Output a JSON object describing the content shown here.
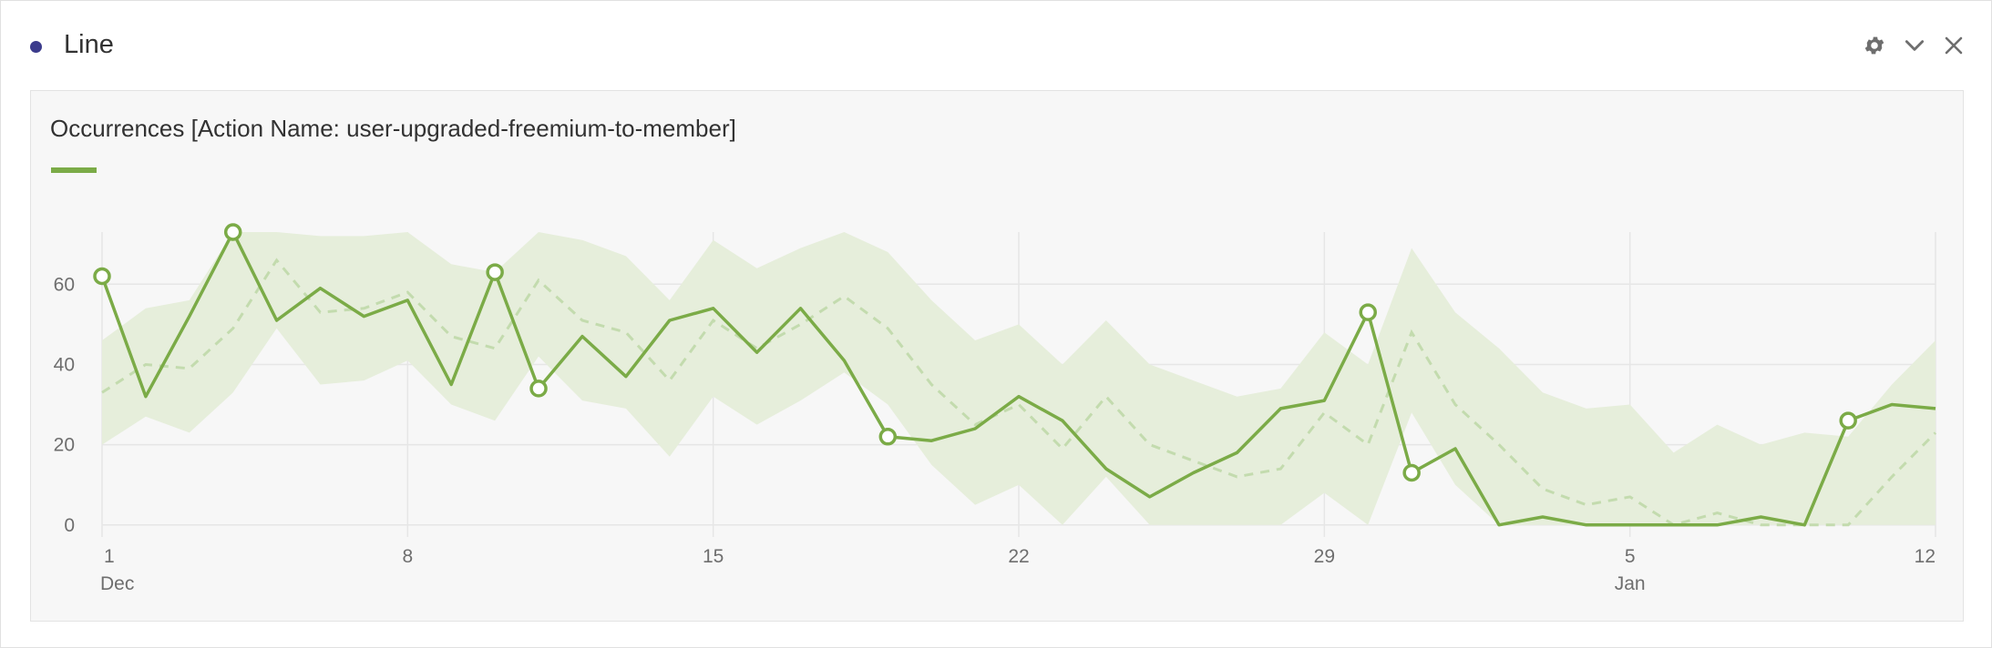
{
  "panel": {
    "title": "Line",
    "status_color": "#3b3b8c",
    "icons": [
      "gear-icon",
      "chevron-down-icon",
      "close-icon"
    ]
  },
  "chart_data": {
    "type": "line",
    "title": "Occurrences [Action Name: user-upgraded-freemium-to-member]",
    "x": [
      "Dec 1",
      "Dec 2",
      "Dec 3",
      "Dec 4",
      "Dec 5",
      "Dec 6",
      "Dec 7",
      "Dec 8",
      "Dec 9",
      "Dec 10",
      "Dec 11",
      "Dec 12",
      "Dec 13",
      "Dec 14",
      "Dec 15",
      "Dec 16",
      "Dec 17",
      "Dec 18",
      "Dec 19",
      "Dec 20",
      "Dec 21",
      "Dec 22",
      "Dec 23",
      "Dec 24",
      "Dec 25",
      "Dec 26",
      "Dec 27",
      "Dec 28",
      "Dec 29",
      "Dec 30",
      "Dec 31",
      "Jan 1",
      "Jan 2",
      "Jan 3",
      "Jan 4",
      "Jan 5",
      "Jan 6",
      "Jan 7",
      "Jan 8",
      "Jan 9",
      "Jan 10",
      "Jan 11",
      "Jan 12"
    ],
    "series": [
      {
        "values": [
          62,
          32,
          52,
          73,
          51,
          59,
          52,
          56,
          35,
          63,
          34,
          47,
          37,
          51,
          54,
          43,
          54,
          41,
          22,
          21,
          24,
          32,
          26,
          14,
          7,
          13,
          18,
          29,
          31,
          53,
          13,
          19,
          0,
          2,
          0,
          0,
          0,
          0,
          2,
          0,
          26,
          30,
          29
        ],
        "anomalies": [
          0,
          3,
          9,
          10,
          18,
          29,
          30,
          40
        ]
      }
    ],
    "forecast": [
      33,
      40,
      39,
      49,
      66,
      53,
      54,
      58,
      47,
      44,
      61,
      51,
      48,
      36,
      51,
      44,
      50,
      57,
      49,
      35,
      25,
      30,
      19,
      32,
      20,
      16,
      12,
      14,
      28,
      20,
      48,
      30,
      20,
      9,
      5,
      7,
      0,
      3,
      0,
      0,
      0,
      12,
      23
    ],
    "band_upper": [
      46,
      54,
      56,
      73,
      73,
      72,
      72,
      73,
      65,
      63,
      73,
      71,
      67,
      56,
      71,
      64,
      69,
      73,
      68,
      56,
      46,
      50,
      40,
      51,
      40,
      36,
      32,
      34,
      48,
      40,
      69,
      53,
      44,
      33,
      29,
      30,
      18,
      25,
      20,
      23,
      22,
      35,
      46
    ],
    "band_lower": [
      20,
      27,
      23,
      33,
      49,
      35,
      36,
      41,
      30,
      26,
      42,
      31,
      29,
      17,
      32,
      25,
      31,
      38,
      30,
      15,
      5,
      10,
      0,
      12,
      0,
      0,
      0,
      0,
      8,
      0,
      28,
      10,
      0,
      0,
      0,
      0,
      0,
      0,
      0,
      0,
      0,
      0,
      0
    ],
    "x_tick_labels": [
      {
        "index": 0,
        "label": "1",
        "sublabel": "Dec"
      },
      {
        "index": 7,
        "label": "8",
        "sublabel": ""
      },
      {
        "index": 14,
        "label": "15",
        "sublabel": ""
      },
      {
        "index": 21,
        "label": "22",
        "sublabel": ""
      },
      {
        "index": 28,
        "label": "29",
        "sublabel": ""
      },
      {
        "index": 35,
        "label": "5",
        "sublabel": "Jan"
      },
      {
        "index": 42,
        "label": "12",
        "sublabel": ""
      }
    ],
    "y_ticks": [
      0,
      20,
      40,
      60
    ],
    "ylim": [
      -3,
      73
    ],
    "grid": true,
    "colors": {
      "line": "#7bab47",
      "forecast": "#c3dbae",
      "band": "#e6eedb",
      "grid": "#e6e6e6"
    }
  }
}
